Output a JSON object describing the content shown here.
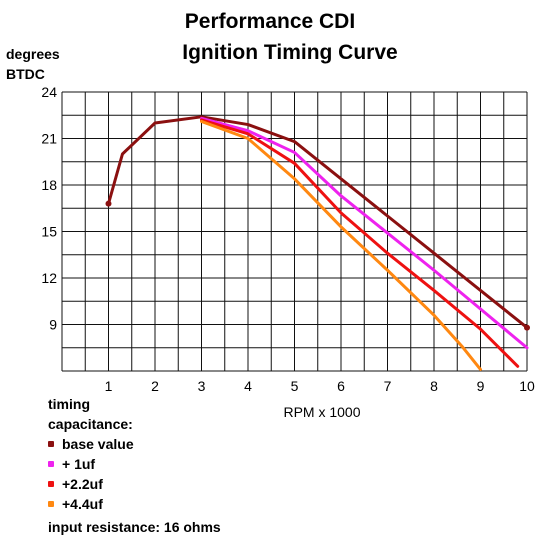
{
  "title_line1": "Performance CDI",
  "title_line2": "Ignition Timing Curve",
  "ylabel_line1": "degrees",
  "ylabel_line2": "BTDC",
  "xlabel": "RPM x 1000",
  "legend": {
    "heading_line1": "timing",
    "heading_line2": "capacitance:",
    "items": [
      {
        "label": "base value",
        "color": "#8b1010"
      },
      {
        "label": "+ 1uf",
        "color": "#ee22ee"
      },
      {
        "label": "+2.2uf",
        "color": "#ee1111"
      },
      {
        "label": "+4.4uf",
        "color": "#ff8811"
      }
    ],
    "note": "input resistance: 16 ohms"
  },
  "chart_data": {
    "type": "line",
    "xlim": [
      0,
      10
    ],
    "ylim": [
      6,
      24
    ],
    "x_ticks": [
      "1",
      "2",
      "3",
      "4",
      "5",
      "6",
      "7",
      "8",
      "9",
      "10"
    ],
    "y_ticks": [
      "9",
      "12",
      "15",
      "18",
      "21",
      "24"
    ],
    "grid": true,
    "series": [
      {
        "name": "base value",
        "color": "#8b1010",
        "points": [
          [
            1,
            16.8
          ],
          [
            1.3,
            20
          ],
          [
            2,
            22
          ],
          [
            3,
            22.4
          ],
          [
            4,
            21.9
          ],
          [
            5,
            20.8
          ],
          [
            6,
            18.4
          ],
          [
            7,
            16
          ],
          [
            8,
            13.6
          ],
          [
            9,
            11.2
          ],
          [
            10,
            8.8
          ]
        ]
      },
      {
        "name": "+ 1uf",
        "color": "#ee22ee",
        "points": [
          [
            3,
            22.3
          ],
          [
            4,
            21.5
          ],
          [
            5,
            20.1
          ],
          [
            6,
            17.3
          ],
          [
            7,
            14.9
          ],
          [
            8,
            12.5
          ],
          [
            9,
            10
          ],
          [
            10,
            7.5
          ]
        ]
      },
      {
        "name": "+2.2uf",
        "color": "#ee1111",
        "points": [
          [
            3,
            22.2
          ],
          [
            4,
            21.3
          ],
          [
            5,
            19.4
          ],
          [
            6,
            16.2
          ],
          [
            7,
            13.6
          ],
          [
            8,
            11.2
          ],
          [
            9,
            8.7
          ],
          [
            9.8,
            6.3
          ]
        ]
      },
      {
        "name": "+4.4uf",
        "color": "#ff8811",
        "points": [
          [
            3,
            22.1
          ],
          [
            4,
            21
          ],
          [
            5,
            18.4
          ],
          [
            6,
            15.3
          ],
          [
            7,
            12.5
          ],
          [
            8,
            9.6
          ],
          [
            8.6,
            7.6
          ],
          [
            9,
            6.1
          ]
        ]
      }
    ]
  }
}
